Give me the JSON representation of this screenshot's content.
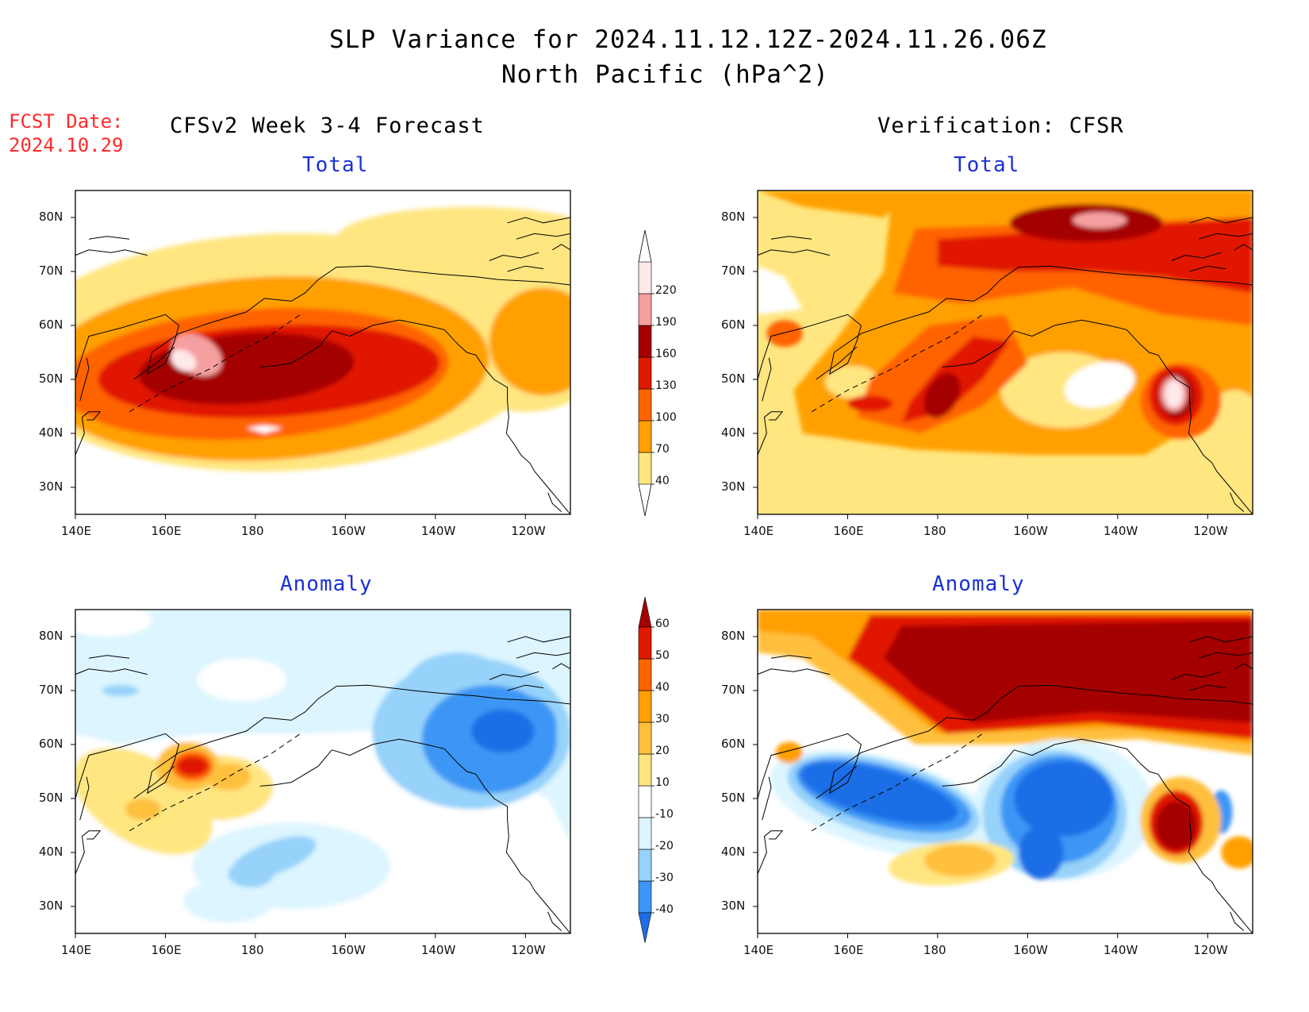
{
  "header": {
    "title": "SLP Variance for 2024.11.12.12Z-2024.11.26.06Z",
    "subtitle": "North Pacific (hPa^2)"
  },
  "forecast_info": {
    "label": "FCST Date:",
    "date": "2024.10.29"
  },
  "columns": {
    "left_title": "CFSv2 Week 3-4 Forecast",
    "right_title": "Verification: CFSR"
  },
  "panels": {
    "fcst_total": "Total",
    "verif_total": "Total",
    "fcst_anomaly": "Anomaly",
    "verif_anomaly": "Anomaly"
  },
  "axes": {
    "lat_labels": [
      "80N",
      "70N",
      "60N",
      "50N",
      "40N",
      "30N"
    ],
    "lon_labels": [
      "140E",
      "160E",
      "180",
      "160W",
      "140W",
      "120W"
    ]
  },
  "colorbars": {
    "total": {
      "levels": [
        "40",
        "70",
        "100",
        "130",
        "160",
        "190",
        "220"
      ],
      "colors": [
        "#ffe680",
        "#ffa000",
        "#ff6400",
        "#e11800",
        "#a50000",
        "#f5a0a0",
        "#ffe8e8"
      ]
    },
    "anomaly": {
      "levels": [
        "-40",
        "-30",
        "-20",
        "-10",
        "10",
        "20",
        "30",
        "40",
        "50",
        "60"
      ],
      "colors": [
        "#1e6ee6",
        "#3c96f5",
        "#96d2fa",
        "#dcf5ff",
        "#ffffff",
        "#ffe680",
        "#ffc03c",
        "#ffa000",
        "#ff6400",
        "#e11800",
        "#a50000"
      ]
    }
  },
  "colors": {
    "title_blue": "#1a2fd8",
    "fcst_red": "#ff2a2a"
  }
}
